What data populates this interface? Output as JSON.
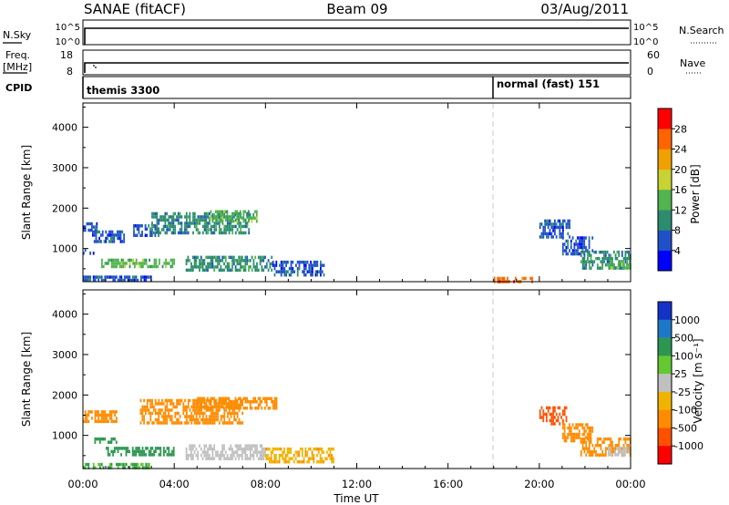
{
  "header": {
    "title": "SANAE (fitACF)",
    "beam": "Beam 09",
    "date": "03/Aug/2011"
  },
  "ancillary": {
    "nsky_label": "N.Sky",
    "nsearch_label": "N.Search",
    "noise_ticks": [
      "10^5",
      "10^0"
    ],
    "freq_label": "Freq.",
    "freq_unit": "[MHz]",
    "freq_ticks": [
      "18",
      "8"
    ],
    "nave_label": "Nave",
    "nave_ticks": [
      "60",
      "0"
    ],
    "cpid_label": "CPID",
    "cpid_entries": [
      {
        "name": "themis 3300",
        "start_hour": 0
      },
      {
        "name": "normal (fast) 151",
        "start_hour": 18
      }
    ]
  },
  "chart_data": [
    {
      "type": "heatmap",
      "panel": "power",
      "title": "",
      "xlabel": "Time UT",
      "ylabel": "Slant Range [km]",
      "xlim": [
        0,
        24
      ],
      "ylim": [
        180,
        4600
      ],
      "x_ticks": [
        "00:00",
        "04:00",
        "08:00",
        "12:00",
        "16:00",
        "20:00",
        "00:00"
      ],
      "y_ticks": [
        1000,
        2000,
        3000,
        4000
      ],
      "colorbar": {
        "label": "Power [dB]",
        "ticks": [
          "4",
          "8",
          "12",
          "16",
          "20",
          "24",
          "28"
        ],
        "colors": [
          "#0000ff",
          "#1e50c8",
          "#2d8c6e",
          "#50b450",
          "#c8d232",
          "#f0a000",
          "#ff6400",
          "#ff0000"
        ]
      },
      "regions": [
        {
          "t0": 0.0,
          "t1": 0.7,
          "r0": 1450,
          "r1": 1650,
          "level": 1
        },
        {
          "t0": 0.4,
          "t1": 1.8,
          "r0": 1150,
          "r1": 1450,
          "level": 1
        },
        {
          "t0": 0.0,
          "t1": 0.5,
          "r0": 850,
          "r1": 1000,
          "level": 1
        },
        {
          "t0": 0.8,
          "t1": 4.0,
          "r0": 550,
          "r1": 750,
          "level": 3
        },
        {
          "t0": 2.2,
          "t1": 3.3,
          "r0": 1300,
          "r1": 1600,
          "level": 1
        },
        {
          "t0": 3.0,
          "t1": 7.3,
          "r0": 1350,
          "r1": 1900,
          "level": 2
        },
        {
          "t0": 5.5,
          "t1": 7.6,
          "r0": 1700,
          "r1": 1950,
          "level": 3
        },
        {
          "t0": 4.5,
          "t1": 8.3,
          "r0": 500,
          "r1": 820,
          "level": 2
        },
        {
          "t0": 8.3,
          "t1": 10.6,
          "r0": 350,
          "r1": 700,
          "level": 1
        },
        {
          "t0": 0.0,
          "t1": 3.0,
          "r0": 200,
          "r1": 330,
          "level": 1
        },
        {
          "t0": 18.0,
          "t1": 19.7,
          "r0": 180,
          "r1": 300,
          "level": 6
        },
        {
          "t0": 20.0,
          "t1": 21.3,
          "r0": 1300,
          "r1": 1720,
          "level": 1
        },
        {
          "t0": 21.0,
          "t1": 22.3,
          "r0": 900,
          "r1": 1300,
          "level": 1
        },
        {
          "t0": 21.8,
          "t1": 24.0,
          "r0": 550,
          "r1": 950,
          "level": 2
        },
        {
          "t0": 23.0,
          "t1": 24.0,
          "r0": 550,
          "r1": 720,
          "level": 3
        }
      ]
    },
    {
      "type": "heatmap",
      "panel": "velocity",
      "title": "",
      "xlabel": "Time UT",
      "ylabel": "Slant Range [km]",
      "xlim": [
        0,
        24
      ],
      "ylim": [
        180,
        4600
      ],
      "x_ticks": [
        "00:00",
        "04:00",
        "08:00",
        "12:00",
        "16:00",
        "20:00",
        "00:00"
      ],
      "y_ticks": [
        1000,
        2000,
        3000,
        4000
      ],
      "colorbar": {
        "label": "Velocity [m s⁻¹]",
        "ticks": [
          "1000",
          "500",
          "100",
          "25",
          "-25",
          "-100",
          "-500",
          "-1000"
        ],
        "colors": [
          "#1432c8",
          "#1e78c8",
          "#2d9650",
          "#64c832",
          "#c0c0c0",
          "#f0b400",
          "#ff8c00",
          "#ff5000",
          "#ff0000"
        ]
      },
      "regions": [
        {
          "t0": 0.0,
          "t1": 1.5,
          "r0": 1350,
          "r1": 1620,
          "velocity": -100
        },
        {
          "t0": 0.5,
          "t1": 1.5,
          "r0": 800,
          "r1": 950,
          "velocity": 100
        },
        {
          "t0": 1.0,
          "t1": 4.0,
          "r0": 550,
          "r1": 720,
          "velocity": 100
        },
        {
          "t0": 2.5,
          "t1": 7.0,
          "r0": 1300,
          "r1": 1900,
          "velocity": -100
        },
        {
          "t0": 5.0,
          "t1": 8.5,
          "r0": 1650,
          "r1": 1950,
          "velocity": -100
        },
        {
          "t0": 4.5,
          "t1": 8.0,
          "r0": 450,
          "r1": 780,
          "velocity": 0
        },
        {
          "t0": 8.0,
          "t1": 11.0,
          "r0": 350,
          "r1": 700,
          "velocity": -50
        },
        {
          "t0": 0.0,
          "t1": 3.0,
          "r0": 200,
          "r1": 320,
          "velocity": 60
        },
        {
          "t0": 20.0,
          "t1": 21.2,
          "r0": 1300,
          "r1": 1720,
          "velocity": -500
        },
        {
          "t0": 21.0,
          "t1": 22.3,
          "r0": 900,
          "r1": 1300,
          "velocity": -200
        },
        {
          "t0": 21.8,
          "t1": 24.0,
          "r0": 500,
          "r1": 950,
          "velocity": -100
        },
        {
          "t0": 23.0,
          "t1": 24.0,
          "r0": 550,
          "r1": 720,
          "velocity": 0
        }
      ]
    }
  ]
}
